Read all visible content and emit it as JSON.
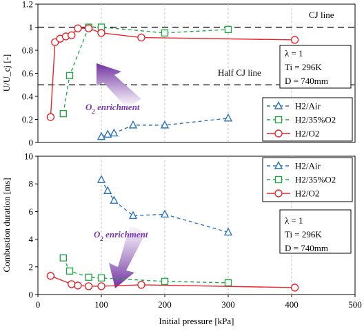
{
  "chart_data": [
    {
      "type": "line",
      "ylabel": "U/U_cj [-]",
      "xlim": [
        0,
        500
      ],
      "ylim": [
        0,
        1.2
      ],
      "x_ticks": [
        0,
        100,
        200,
        300,
        400,
        500
      ],
      "y_ticks": [
        "0",
        "0.2",
        "0.4",
        "0.6",
        "0.8",
        "1",
        "1.2"
      ],
      "grid": "vertical dotted",
      "legend_position": "lower-right",
      "series": [
        {
          "name": "H2/Air",
          "marker": "triangle",
          "style": "dashed",
          "color": "#2e75b6",
          "x": [
            100,
            110,
            120,
            150,
            200,
            300
          ],
          "y": [
            0.05,
            0.07,
            0.08,
            0.15,
            0.15,
            0.21
          ]
        },
        {
          "name": "H2/35%O2",
          "marker": "square",
          "style": "dashed",
          "color": "#22a84a",
          "x": [
            40,
            50,
            80,
            100,
            200,
            300
          ],
          "y": [
            0.25,
            0.58,
            1.0,
            1.0,
            0.95,
            0.98
          ]
        },
        {
          "name": "H2/O2",
          "marker": "circle",
          "style": "solid",
          "color": "#e8262b",
          "x": [
            20,
            27,
            35,
            44,
            53,
            63,
            80,
            100,
            163,
            405
          ],
          "y": [
            0.22,
            0.87,
            0.9,
            0.92,
            0.93,
            0.99,
            0.99,
            0.95,
            0.91,
            0.89
          ]
        }
      ],
      "reference_lines": [
        {
          "label": "CJ  line",
          "y": 1.0
        },
        {
          "label": "Half CJ  line",
          "y": 0.5
        }
      ],
      "info_box": [
        "λ = 1",
        "Ti = 296K",
        "D = 740mm"
      ],
      "annotation": {
        "text_main": "O",
        "text_sub": "2",
        "text_rest": " enrichment"
      }
    },
    {
      "type": "line",
      "xlabel": "Initial pressure [kPa]",
      "ylabel": "Combustion duration [ms]",
      "xlim": [
        0,
        500
      ],
      "ylim": [
        0,
        10
      ],
      "x_ticks": [
        "0",
        "100",
        "200",
        "300",
        "400",
        "500"
      ],
      "y_ticks": [
        "0",
        "2",
        "4",
        "6",
        "8",
        "10"
      ],
      "grid": "vertical dotted",
      "legend_position": "top-right",
      "series": [
        {
          "name": "H2/Air",
          "marker": "triangle",
          "style": "dashed",
          "color": "#2e75b6",
          "x": [
            100,
            110,
            120,
            150,
            200,
            300
          ],
          "y": [
            8.3,
            7.5,
            6.8,
            5.7,
            5.8,
            4.5
          ]
        },
        {
          "name": "H2/35%O2",
          "marker": "square",
          "style": "dashed",
          "color": "#22a84a",
          "x": [
            40,
            50,
            80,
            100,
            200,
            300
          ],
          "y": [
            2.65,
            1.7,
            1.25,
            1.2,
            0.95,
            0.85
          ]
        },
        {
          "name": "H2/O2",
          "marker": "circle",
          "style": "solid",
          "color": "#e8262b",
          "x": [
            20,
            53,
            63,
            80,
            100,
            163,
            405
          ],
          "y": [
            1.35,
            0.75,
            0.65,
            0.6,
            0.6,
            0.7,
            0.5
          ]
        }
      ],
      "info_box": [
        "λ = 1",
        "Ti = 296K",
        "D = 740mm"
      ],
      "annotation": {
        "text_main": "O",
        "text_sub": "2",
        "text_rest": " enrichment"
      }
    }
  ]
}
